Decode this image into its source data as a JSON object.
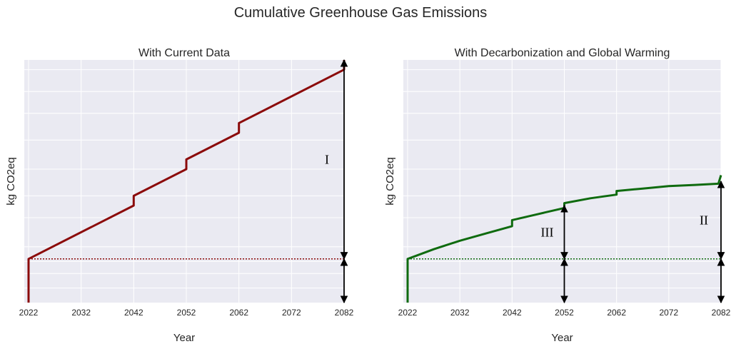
{
  "figure": {
    "title": "Cumulative Greenhouse Gas Emissions"
  },
  "chart_data": [
    {
      "type": "line",
      "title": "With Current Data",
      "xlabel": "Year",
      "ylabel": "kg CO2eq",
      "xticks": [
        2022,
        2032,
        2042,
        2052,
        2062,
        2072,
        2082
      ],
      "xlim": [
        2022,
        2082
      ],
      "ylim": [
        0,
        100
      ],
      "y_tick_labels_shown": false,
      "grid": true,
      "colors": {
        "line": "#8b0a0a",
        "baseline": "#8b0a0a",
        "background": "#eaeaf2",
        "grid": "#ffffff",
        "arrow": "#000000"
      },
      "series": [
        {
          "values": [
            [
              2022,
              0
            ],
            [
              2022,
              18
            ],
            [
              2042,
              40
            ],
            [
              2042,
              44
            ],
            [
              2052,
              55
            ],
            [
              2052,
              59
            ],
            [
              2062,
              70
            ],
            [
              2062,
              74
            ],
            [
              2082,
              96
            ],
            [
              2082,
              100
            ]
          ]
        }
      ],
      "baseline": {
        "y": 18,
        "style": "dotted"
      },
      "arrows": [
        {
          "x": 2082,
          "y_from": 18,
          "y_to": 100,
          "label": "I"
        },
        {
          "x": 2082,
          "y_from": 0,
          "y_to": 18,
          "label": ""
        }
      ]
    },
    {
      "type": "line",
      "title": "With Decarbonization and Global Warming",
      "xlabel": "Year",
      "ylabel": "kg CO2eq",
      "xticks": [
        2022,
        2032,
        2042,
        2052,
        2062,
        2072,
        2082
      ],
      "xlim": [
        2022,
        2082
      ],
      "ylim": [
        0,
        100
      ],
      "y_tick_labels_shown": false,
      "grid": true,
      "colors": {
        "line": "#0f6b0f",
        "baseline": "#0f6b0f",
        "background": "#eaeaf2",
        "grid": "#ffffff",
        "arrow": "#000000"
      },
      "series": [
        {
          "values": [
            [
              2022,
              0
            ],
            [
              2022,
              18
            ],
            [
              2027,
              22
            ],
            [
              2032,
              25.5
            ],
            [
              2037,
              28.5
            ],
            [
              2042,
              31.5
            ],
            [
              2042,
              34
            ],
            [
              2047,
              36.5
            ],
            [
              2052,
              39
            ],
            [
              2052,
              41
            ],
            [
              2057,
              43
            ],
            [
              2062,
              44.5
            ],
            [
              2062,
              46
            ],
            [
              2067,
              47
            ],
            [
              2072,
              48
            ],
            [
              2077,
              48.5
            ],
            [
              2081.5,
              49
            ],
            [
              2082,
              52.5
            ]
          ]
        }
      ],
      "baseline": {
        "y": 18,
        "style": "dotted"
      },
      "arrows": [
        {
          "x": 2052,
          "y_from": 18,
          "y_to": 40,
          "label": "III"
        },
        {
          "x": 2052,
          "y_from": 0,
          "y_to": 18,
          "label": ""
        },
        {
          "x": 2082,
          "y_from": 18,
          "y_to": 50,
          "label": "II"
        },
        {
          "x": 2082,
          "y_from": 0,
          "y_to": 18,
          "label": ""
        }
      ]
    }
  ]
}
